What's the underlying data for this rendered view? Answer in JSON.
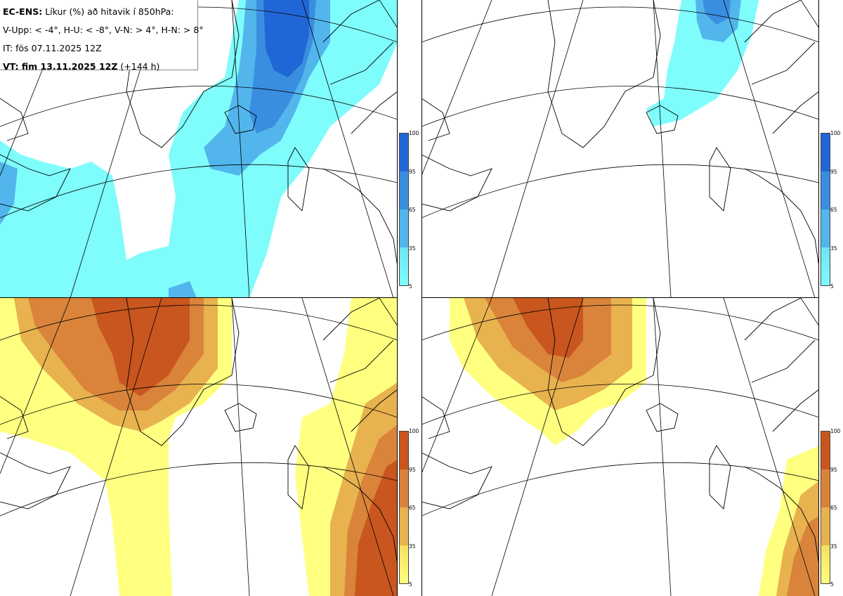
{
  "title_box": {
    "line1_bold": "EC-ENS:",
    "line1_rest": "Líkur (%) að hitavik í 850hPa:",
    "line2": "V-Upp: < -4°, H-U: < -8°, V-N: > 4°, H-N: > 8°",
    "line3": "IT: fös 07.11.2025 12Z",
    "line4_bold": "VT: fim 13.11.2025 12Z",
    "line4_rest": "(+144 h)"
  },
  "colorbar_cold": {
    "ticks": [
      "100",
      "95",
      "65",
      "35",
      "5"
    ],
    "colors": [
      "#2166d6",
      "#3a8ee0",
      "#52b6ec",
      "#6ee4f4",
      "#7ffcfc"
    ]
  },
  "colorbar_warm": {
    "ticks": [
      "100",
      "95",
      "65",
      "35",
      "5"
    ],
    "colors": [
      "#c8561e",
      "#d9843a",
      "#e8b24f",
      "#f5e060",
      "#ffff80"
    ]
  },
  "panels": [
    {
      "id": "V-Upp",
      "kind": "cold",
      "threshold": "< -4°"
    },
    {
      "id": "H-U",
      "kind": "cold",
      "threshold": "< -8°"
    },
    {
      "id": "V-N",
      "kind": "warm",
      "threshold": "> 4°"
    },
    {
      "id": "H-N",
      "kind": "warm",
      "threshold": "> 8°"
    }
  ]
}
